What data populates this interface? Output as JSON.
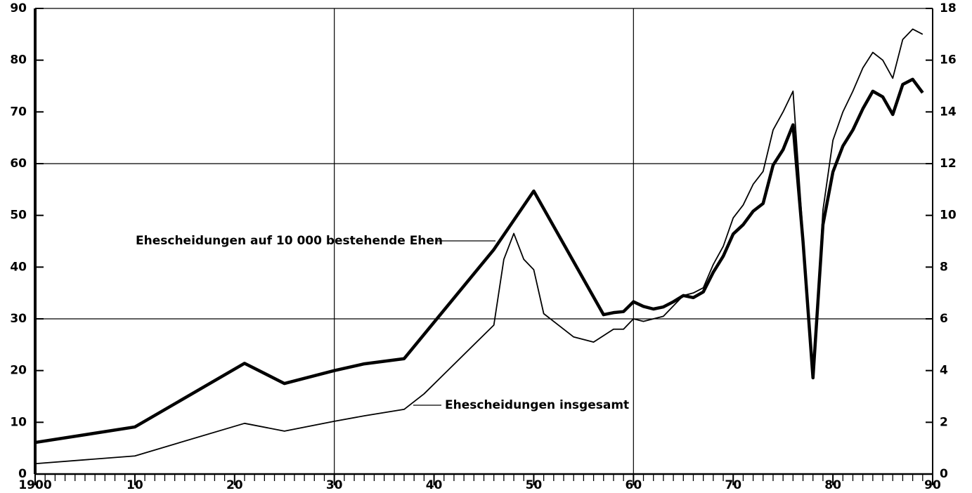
{
  "chart_data": {
    "type": "line",
    "xlim": [
      1900,
      1990
    ],
    "xticks": [
      {
        "value": 1900,
        "label": "1900"
      },
      {
        "value": 1910,
        "label": "10"
      },
      {
        "value": 1920,
        "label": "20"
      },
      {
        "value": 1930,
        "label": "30"
      },
      {
        "value": 1940,
        "label": "40"
      },
      {
        "value": 1950,
        "label": "50"
      },
      {
        "value": 1960,
        "label": "60"
      },
      {
        "value": 1970,
        "label": "70"
      },
      {
        "value": 1980,
        "label": "80"
      },
      {
        "value": 1990,
        "label": "90"
      }
    ],
    "ylim": [
      0,
      90
    ],
    "yticks": [
      0,
      10,
      20,
      30,
      40,
      50,
      60,
      70,
      80,
      90
    ],
    "y2lim": [
      0,
      18
    ],
    "y2ticks": [
      0,
      2,
      4,
      6,
      8,
      10,
      12,
      14,
      16,
      18
    ],
    "ygrid": [
      30,
      60,
      90
    ],
    "xgrid": [
      1930,
      1960,
      1990
    ],
    "series": [
      {
        "name": "Ehescheidungen auf 10 000 bestehende Ehen",
        "color": "#000000",
        "line_width": 4.5,
        "axis": "y",
        "x": [
          1900,
          1910,
          1921,
          1925,
          1930,
          1933,
          1937,
          1946,
          1950,
          1957,
          1958,
          1959,
          1960,
          1961,
          1962,
          1963,
          1964,
          1965,
          1966,
          1967,
          1968,
          1969,
          1970,
          1971,
          1972,
          1973,
          1974,
          1975,
          1976,
          1977,
          1978,
          1979,
          1980,
          1981,
          1982,
          1983,
          1984,
          1985,
          1986,
          1987,
          1988,
          1989
        ],
        "values": [
          6.1,
          9.1,
          21.4,
          17.5,
          20,
          21.3,
          22.3,
          43.4,
          54.7,
          30.8,
          31.2,
          31.4,
          33.3,
          32.4,
          31.9,
          32.3,
          33.3,
          34.5,
          34.1,
          35.2,
          39,
          42.1,
          46.4,
          48.2,
          50.8,
          52.3,
          59.7,
          62.7,
          67.5,
          45,
          18.6,
          48.2,
          58.4,
          63.4,
          66.5,
          70.6,
          74,
          72.9,
          69.5,
          75.3,
          76.3,
          73.7
        ]
      },
      {
        "name": "Ehescheidungen insgesamt",
        "color": "#000000",
        "line_width": 1.8,
        "axis": "y2",
        "x": [
          1900,
          1910,
          1921,
          1925,
          1930,
          1933,
          1937,
          1939,
          1946,
          1947,
          1948,
          1949,
          1950,
          1951,
          1952,
          1954,
          1956,
          1958,
          1959,
          1960,
          1961,
          1962,
          1963,
          1964,
          1965,
          1966,
          1967,
          1968,
          1969,
          1970,
          1971,
          1972,
          1973,
          1974,
          1975,
          1976,
          1978,
          1979,
          1980,
          1981,
          1982,
          1983,
          1984,
          1985,
          1986,
          1987,
          1988,
          1989
        ],
        "values": [
          0.4,
          0.7,
          1.96,
          1.66,
          2.04,
          2.25,
          2.5,
          3.1,
          5.76,
          8.3,
          9.3,
          8.3,
          7.9,
          6.2,
          5.9,
          5.3,
          5.1,
          5.6,
          5.6,
          6.0,
          5.9,
          6.0,
          6.1,
          6.5,
          6.9,
          7.0,
          7.2,
          8.1,
          8.8,
          9.9,
          10.4,
          11.2,
          11.7,
          13.3,
          14.0,
          14.8,
          3.7,
          10.2,
          12.9,
          14.0,
          14.8,
          15.7,
          16.3,
          16.0,
          15.3,
          16.8,
          17.2,
          17.0
        ]
      }
    ]
  }
}
